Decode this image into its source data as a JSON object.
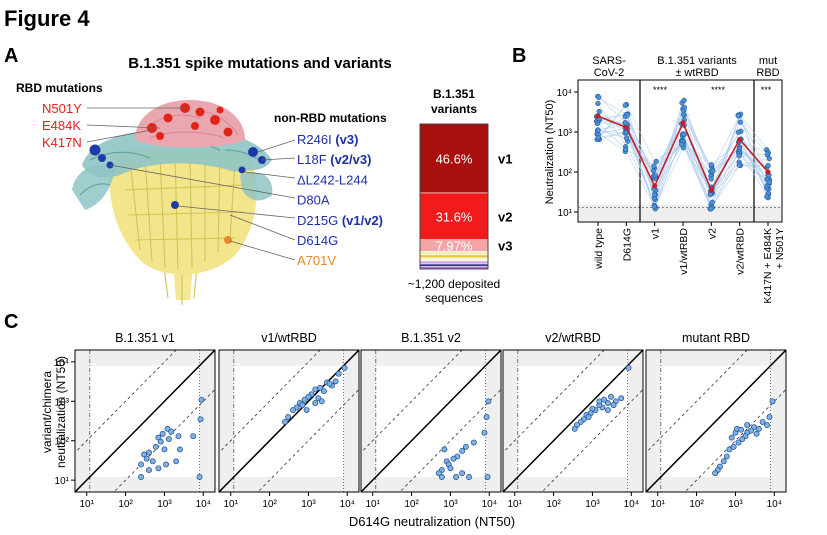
{
  "figure_title": "Figure 4",
  "panel_a": {
    "letter": "A",
    "title": "B.1.351 spike mutations and variants",
    "rbd_heading": "RBD mutations",
    "rbd_mutations": [
      "N501Y",
      "E484K",
      "K417N"
    ],
    "non_rbd_heading": "non-RBD mutations",
    "non_rbd_mutations": [
      {
        "name": "R246I",
        "tag": "(v3)",
        "color": "#1f2fa8"
      },
      {
        "name": "L18F",
        "tag": "(v2/v3)",
        "color": "#1f2fa8"
      },
      {
        "name": "ΔL242-L244",
        "tag": "",
        "color": "#1f2fa8"
      },
      {
        "name": "D80A",
        "tag": "",
        "color": "#1f2fa8"
      },
      {
        "name": "D215G",
        "tag": "(v1/v2)",
        "color": "#1f2fa8"
      },
      {
        "name": "D614G",
        "tag": "",
        "color": "#1f2fa8"
      },
      {
        "name": "A701V",
        "tag": "",
        "color": "#e8892b"
      }
    ],
    "rbd_color": "#e8201e",
    "variants_bar": {
      "title_line1": "B.1.351",
      "title_line2": "variants",
      "segments": [
        {
          "value": 46.6,
          "label": "46.6%",
          "color": "#a81010",
          "variant": "v1"
        },
        {
          "value": 31.6,
          "label": "31.6%",
          "color": "#f21a1a",
          "variant": "v2"
        },
        {
          "value": 7.97,
          "label": "7.97%",
          "color": "#f4a6a6",
          "variant": "v3"
        },
        {
          "value": 2.2,
          "label": "",
          "color": "#f3ecb8",
          "variant": ""
        },
        {
          "value": 2.2,
          "label": "",
          "color": "#e6c84a",
          "variant": ""
        },
        {
          "value": 2.0,
          "label": "",
          "color": "#f7f2d0",
          "variant": ""
        },
        {
          "value": 2.0,
          "label": "",
          "color": "#c8a6e0",
          "variant": ""
        },
        {
          "value": 1.8,
          "label": "",
          "color": "#3a2a9a",
          "variant": ""
        },
        {
          "value": 1.6,
          "label": "",
          "color": "#a070c8",
          "variant": ""
        }
      ],
      "caption_line1": "~1,200 deposited",
      "caption_line2": "sequences"
    }
  },
  "panel_b": {
    "letter": "B",
    "ylabel": "Neutralization (NT50)",
    "group_labels": [
      {
        "line1": "SARS-",
        "line2": "CoV-2"
      },
      {
        "line1": "B.1.351 variants",
        "line2": "± wtRBD"
      },
      {
        "line1": "mut",
        "line2": "RBD"
      }
    ],
    "significance": [
      "****",
      "****",
      "***"
    ],
    "chart_data": {
      "type": "scatter",
      "yscale": "log",
      "ylim": [
        10,
        10000
      ],
      "yticks": [
        "10¹",
        "10²",
        "10³",
        "10⁴"
      ],
      "categories": [
        "wild type",
        "D614G",
        "v1",
        "v1/wtRBD",
        "v2",
        "v2/wtRBD",
        "K417N + E484K + N501Y"
      ],
      "medians": [
        2500,
        1300,
        45,
        1700,
        35,
        650,
        100
      ],
      "median_color": "#c0202a",
      "point_color": "#4a90d9",
      "line_color": "#aac8ea"
    }
  },
  "panel_c": {
    "letter": "C",
    "ylabel_line1": "variant/chimera",
    "ylabel_line2": "neutralization (NT50)",
    "xlabel": "D614G neutralization (NT50)",
    "chart_data": {
      "type": "scatter",
      "xscale": "log",
      "yscale": "log",
      "xlim": [
        5,
        20000
      ],
      "ylim": [
        5,
        20000
      ],
      "xticks": [
        "10¹",
        "10²",
        "10³",
        "10⁴"
      ],
      "yticks": [
        "10¹",
        "10²",
        "10³",
        "10⁴"
      ],
      "panels": [
        {
          "title": "B.1.351 v1",
          "points": [
            [
              9000,
              1100
            ],
            [
              8500,
              350
            ],
            [
              1200,
              200
            ],
            [
              900,
              150
            ],
            [
              1500,
              170
            ],
            [
              700,
              120
            ],
            [
              800,
              95
            ],
            [
              1300,
              110
            ],
            [
              2300,
              130
            ],
            [
              600,
              70
            ],
            [
              1000,
              60
            ],
            [
              400,
              50
            ],
            [
              300,
              45
            ],
            [
              2500,
              60
            ],
            [
              5500,
              130
            ],
            [
              350,
              35
            ],
            [
              500,
              30
            ],
            [
              250,
              25
            ],
            [
              1100,
              25
            ],
            [
              2000,
              30
            ],
            [
              700,
              20
            ],
            [
              400,
              18
            ],
            [
              8000,
              12
            ],
            [
              250,
              12
            ]
          ]
        },
        {
          "title": "v1/wtRBD",
          "points": [
            [
              8500,
              7000
            ],
            [
              6000,
              5000
            ],
            [
              4000,
              2500
            ],
            [
              3000,
              3000
            ],
            [
              2000,
              2200
            ],
            [
              2500,
              1800
            ],
            [
              1500,
              2000
            ],
            [
              1200,
              1500
            ],
            [
              1000,
              1300
            ],
            [
              800,
              1100
            ],
            [
              1800,
              1200
            ],
            [
              3500,
              2800
            ],
            [
              600,
              900
            ],
            [
              500,
              700
            ],
            [
              700,
              800
            ],
            [
              400,
              600
            ],
            [
              300,
              400
            ],
            [
              1500,
              900
            ],
            [
              2200,
              1000
            ],
            [
              250,
              300
            ],
            [
              900,
              600
            ],
            [
              5000,
              3200
            ]
          ]
        },
        {
          "title": "B.1.351 v2",
          "points": [
            [
              9500,
              1000
            ],
            [
              8500,
              400
            ],
            [
              7500,
              160
            ],
            [
              4000,
              90
            ],
            [
              2500,
              70
            ],
            [
              2000,
              55
            ],
            [
              1500,
              40
            ],
            [
              1200,
              35
            ],
            [
              800,
              30
            ],
            [
              700,
              60
            ],
            [
              900,
              25
            ],
            [
              1000,
              20
            ],
            [
              600,
              18
            ],
            [
              500,
              15
            ],
            [
              3000,
              12
            ],
            [
              1400,
              12
            ],
            [
              600,
              12
            ],
            [
              9000,
              12
            ],
            [
              2000,
              15
            ]
          ]
        },
        {
          "title": "v2/wtRBD",
          "points": [
            [
              8500,
              7000
            ],
            [
              5500,
              1200
            ],
            [
              4000,
              1000
            ],
            [
              3000,
              1300
            ],
            [
              2500,
              900
            ],
            [
              2000,
              1100
            ],
            [
              1800,
              700
            ],
            [
              1500,
              800
            ],
            [
              1200,
              600
            ],
            [
              1000,
              650
            ],
            [
              900,
              500
            ],
            [
              700,
              450
            ],
            [
              600,
              350
            ],
            [
              500,
              300
            ],
            [
              400,
              250
            ],
            [
              350,
              200
            ],
            [
              1500,
              1000
            ],
            [
              2500,
              600
            ],
            [
              3500,
              800
            ],
            [
              800,
              400
            ]
          ]
        },
        {
          "title": "mutant RBD",
          "points": [
            [
              9000,
              1000
            ],
            [
              7500,
              400
            ],
            [
              6500,
              250
            ],
            [
              5000,
              300
            ],
            [
              4000,
              200
            ],
            [
              3500,
              150
            ],
            [
              3000,
              220
            ],
            [
              2500,
              180
            ],
            [
              2000,
              160
            ],
            [
              1800,
              130
            ],
            [
              1500,
              110
            ],
            [
              1200,
              90
            ],
            [
              1000,
              160
            ],
            [
              900,
              70
            ],
            [
              800,
              120
            ],
            [
              700,
              60
            ],
            [
              600,
              40
            ],
            [
              500,
              30
            ],
            [
              400,
              22
            ],
            [
              350,
              18
            ],
            [
              300,
              15
            ],
            [
              1100,
              200
            ],
            [
              2000,
              250
            ],
            [
              1400,
              190
            ]
          ]
        }
      ]
    }
  }
}
